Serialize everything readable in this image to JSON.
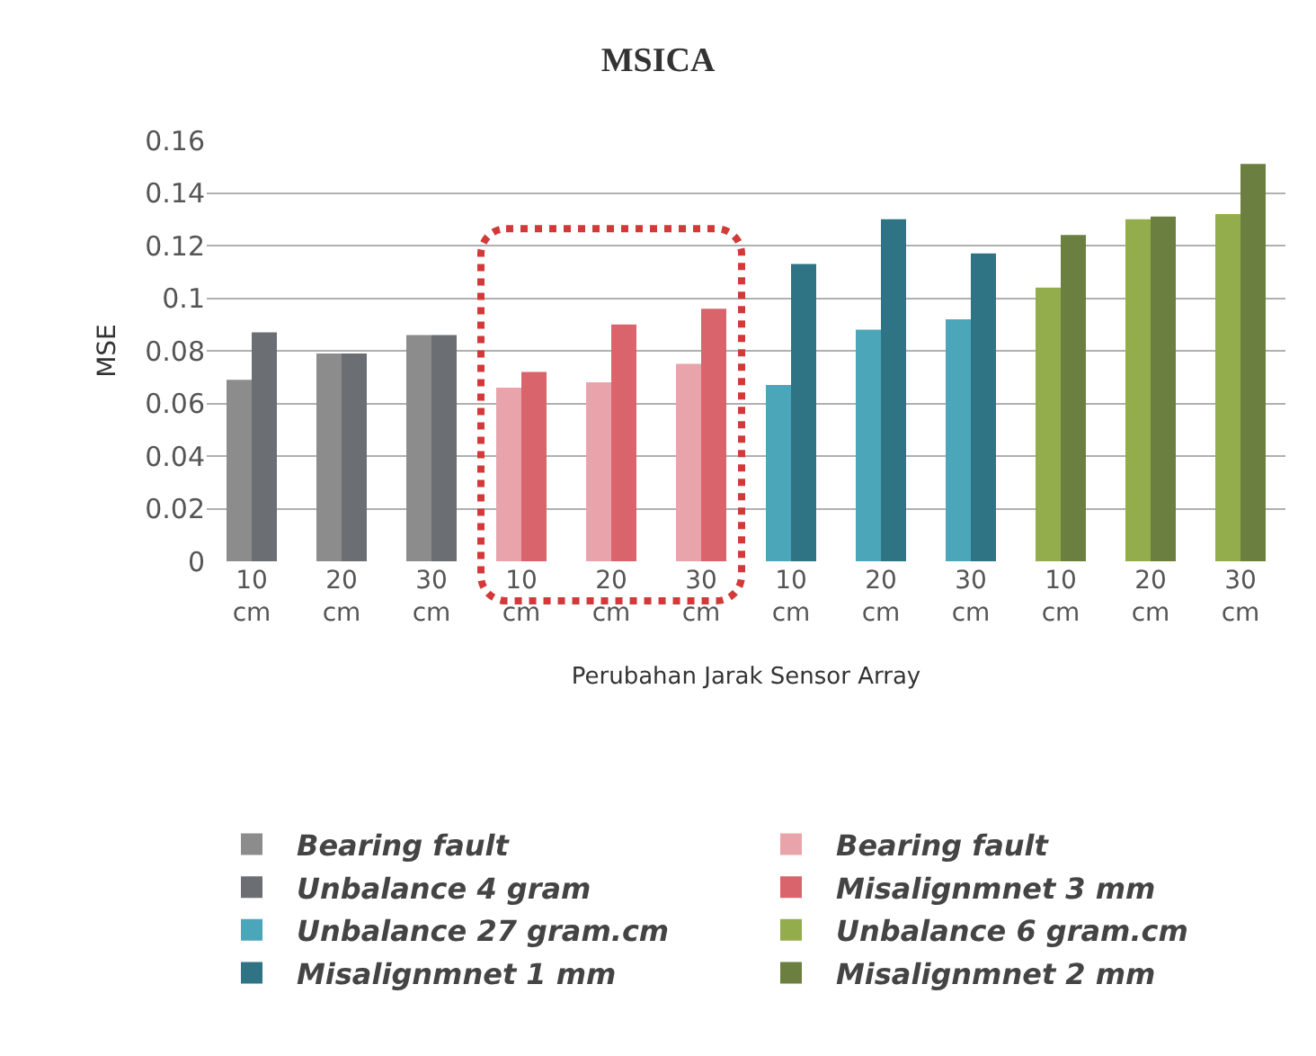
{
  "chart_data": {
    "type": "bar",
    "title": "MSICA",
    "xlabel": "Perubahan Jarak Sensor Array",
    "ylabel": "MSE",
    "categories": [
      "10 cm",
      "20 cm",
      "30 cm",
      "10 cm",
      "20 cm",
      "30 cm",
      "10 cm",
      "20 cm",
      "30 cm",
      "10 cm",
      "20 cm",
      "30 cm"
    ],
    "series": [
      {
        "name": "Bearing fault",
        "color": "#8c8c8c",
        "values": [
          0.069,
          0.079,
          0.086,
          null,
          null,
          null,
          null,
          null,
          null,
          null,
          null,
          null
        ]
      },
      {
        "name": "Bearing fault",
        "color": "#e8a4aa",
        "values": [
          null,
          null,
          null,
          0.066,
          0.068,
          0.075,
          null,
          null,
          null,
          null,
          null,
          null
        ]
      },
      {
        "name": "Unbalance 4 gram",
        "color": "#6b6e72",
        "values": [
          0.087,
          0.079,
          0.086,
          null,
          null,
          null,
          null,
          null,
          null,
          null,
          null,
          null
        ]
      },
      {
        "name": "Misalignmnet 3 mm",
        "color": "#d9646c",
        "values": [
          null,
          null,
          null,
          0.072,
          0.09,
          0.096,
          null,
          null,
          null,
          null,
          null,
          null
        ]
      },
      {
        "name": "Unbalance 27 gram.cm",
        "color": "#4aa6b8",
        "values": [
          null,
          null,
          null,
          null,
          null,
          null,
          0.067,
          0.088,
          0.092,
          null,
          null,
          null
        ]
      },
      {
        "name": "Unbalance 6 gram.cm",
        "color": "#93ad4d",
        "values": [
          null,
          null,
          null,
          null,
          null,
          null,
          null,
          null,
          null,
          0.104,
          0.13,
          0.132
        ]
      },
      {
        "name": "Misalignmnet 1 mm",
        "color": "#2e7485",
        "values": [
          null,
          null,
          null,
          null,
          null,
          null,
          0.113,
          0.13,
          0.117,
          null,
          null,
          null
        ]
      },
      {
        "name": "Misalignmnet 2 mm",
        "color": "#6b8040",
        "values": [
          null,
          null,
          null,
          null,
          null,
          null,
          null,
          null,
          null,
          0.124,
          0.131,
          0.151
        ]
      }
    ],
    "ylim": [
      0,
      0.16
    ],
    "yticks": [
      0,
      0.02,
      0.04,
      0.06,
      0.08,
      0.1,
      0.12,
      0.14,
      0.16
    ],
    "grid": "y",
    "legend": "bottom"
  }
}
